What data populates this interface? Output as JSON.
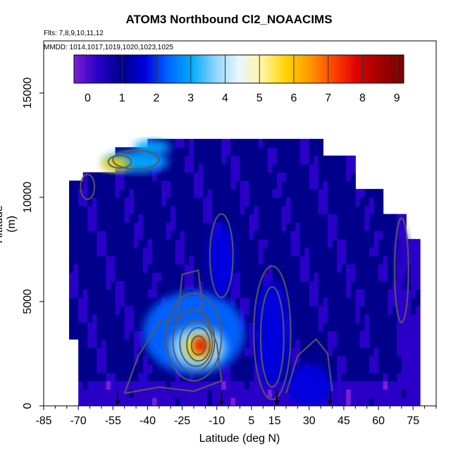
{
  "chart_data": {
    "type": "heatmap",
    "title": "ATOM3 Northbound Cl2_NOAACIMS",
    "subtitle_flights": "Flts: 7,8,9,10,11,12",
    "subtitle_dates": "MMDD: 1014,1017,1019,1020,1023,1025",
    "xlabel": "Latitude (deg N)",
    "ylabel": "Altitude (m)",
    "xlim": [
      -85,
      85
    ],
    "ylim": [
      0,
      17500
    ],
    "x_ticks": [
      -85,
      -70,
      -55,
      -40,
      -25,
      -10,
      5,
      15,
      30,
      45,
      60,
      75
    ],
    "y_ticks": [
      0,
      5000,
      10000,
      15000
    ],
    "colorbar": {
      "min": -0.4,
      "max": 9.2,
      "ticks": [
        0,
        1,
        2,
        3,
        4,
        5,
        6,
        7,
        8,
        9
      ],
      "colors": [
        "#7a1fd6",
        "#2a00c8",
        "#00008b",
        "#0000e0",
        "#0066ff",
        "#00aaff",
        "#8fd4ff",
        "#e8f7ff",
        "#fff4a0",
        "#ffd400",
        "#ff9900",
        "#ff4400",
        "#e00000",
        "#a00000",
        "#7a0000"
      ]
    },
    "features": [
      {
        "name": "vertical field of Cl2 values",
        "background_value": 0.8
      },
      {
        "name": "high-latitude upper-level band",
        "lat_range": [
          -70,
          -25
        ],
        "alt_range": [
          11000,
          13000
        ],
        "peak": 6.5
      },
      {
        "name": "boundary-layer plume",
        "lat": -18,
        "alt": 2800,
        "peak": 7.5
      }
    ],
    "arrow_latitudes": [
      -53,
      -8,
      16,
      39
    ],
    "grid": false
  }
}
